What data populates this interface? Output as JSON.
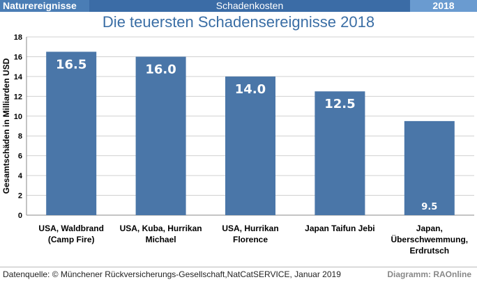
{
  "header": {
    "left": "Naturereignisse",
    "center": "Schadenkosten",
    "right": "2018"
  },
  "chart_data": {
    "type": "bar",
    "title": "Die teuersten Schadensereignisse 2018",
    "xlabel": "",
    "ylabel": "Gesamtschäden in Milliarden USD",
    "ylim": [
      0,
      18
    ],
    "yticks": [
      0,
      2,
      4,
      6,
      8,
      10,
      12,
      14,
      16,
      18
    ],
    "categories": [
      [
        "USA, Waldbrand",
        "(Camp Fire)"
      ],
      [
        "USA, Kuba, Hurrikan",
        "Michael"
      ],
      [
        "USA, Hurrikan",
        "Florence"
      ],
      [
        "Japan Taifun Jebi"
      ],
      [
        "Japan,",
        "Überschwemmung,",
        "Erdrutsch"
      ]
    ],
    "values": [
      16.5,
      16.0,
      14.0,
      12.5,
      9.5
    ],
    "labels": [
      "16.5",
      "16.0",
      "14.0",
      "12.5",
      "9.5"
    ],
    "bar_color": "#4a76a8",
    "grid": true
  },
  "footer": {
    "source": "Datenquelle: © Münchener Rückversicherungs-Gesellschaft,NatCatSERVICE, Januar 2019",
    "credit": "Diagramm: RAOnline"
  }
}
